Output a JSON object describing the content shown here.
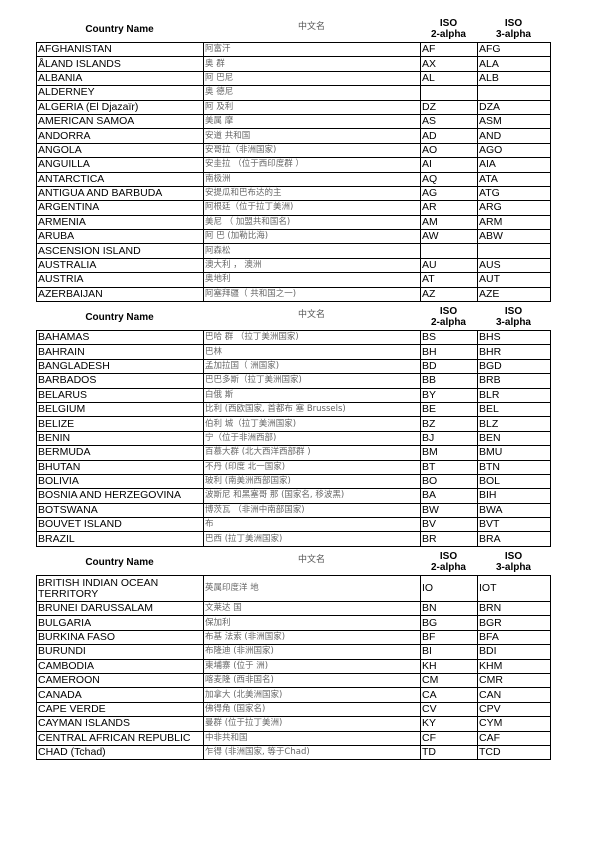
{
  "headers": {
    "name": "Country Name",
    "chinese": "中文名",
    "iso2": "ISO\n2-alpha",
    "iso3": "ISO\n3-alpha"
  },
  "sections": [
    [
      [
        "AFGHANISTAN",
        "阿富汗",
        "AF",
        "AFG"
      ],
      [
        "ÅLAND ISLANDS",
        "奥 群",
        "AX",
        "ALA"
      ],
      [
        "ALBANIA",
        "阿 巴尼",
        "AL",
        "ALB"
      ],
      [
        "ALDERNEY",
        "奥 德尼",
        "",
        ""
      ],
      [
        "ALGERIA (El Djazaïr)",
        "阿 及利",
        "DZ",
        "DZA"
      ],
      [
        "AMERICAN SAMOA",
        "美属 摩",
        "AS",
        "ASM"
      ],
      [
        "ANDORRA",
        "安道 共和国",
        "AD",
        "AND"
      ],
      [
        "ANGOLA",
        "安哥拉（非洲国家)",
        "AO",
        "AGO"
      ],
      [
        "ANGUILLA",
        "安圭拉 （位于西印度群 ）",
        "AI",
        "AIA"
      ],
      [
        "ANTARCTICA",
        "南极洲",
        "AQ",
        "ATA"
      ],
      [
        "ANTIGUA AND BARBUDA",
        "安提瓜和巴布达的主",
        "AG",
        "ATG"
      ],
      [
        "ARGENTINA",
        "阿根廷（位于拉丁美洲)",
        "AR",
        "ARG"
      ],
      [
        "ARMENIA",
        "美尼 （  加盟共和国名)",
        "AM",
        "ARM"
      ],
      [
        "ARUBA",
        "阿 巴  (加勒比海)",
        "AW",
        "ABW"
      ],
      [
        "ASCENSION ISLAND",
        "阿森松",
        "",
        ""
      ],
      [
        "AUSTRALIA",
        "澳大利 ， 澳洲",
        "AU",
        "AUS"
      ],
      [
        "AUSTRIA",
        "奥地利",
        "AT",
        "AUT"
      ],
      [
        "AZERBAIJAN",
        "阿塞拜疆（  共和国之一)",
        "AZ",
        "AZE"
      ]
    ],
    [
      [
        "BAHAMAS",
        "巴哈 群 （拉丁美洲国家)",
        "BS",
        "BHS"
      ],
      [
        "BAHRAIN",
        "巴林",
        "BH",
        "BHR"
      ],
      [
        "BANGLADESH",
        "孟加拉国（ 洲国家)",
        "BD",
        "BGD"
      ],
      [
        "BARBADOS",
        "巴巴多斯（拉丁美洲国家)",
        "BB",
        "BRB"
      ],
      [
        "BELARUS",
        "白俄 斯",
        "BY",
        "BLR"
      ],
      [
        "BELGIUM",
        "  比利  (西欧国家, 首都布 塞 Brussels)",
        "BE",
        "BEL"
      ],
      [
        "BELIZE",
        "  伯利 城（拉丁美洲国家)",
        "BZ",
        "BLZ"
      ],
      [
        "BENIN",
        " 宁（位于非洲西部)",
        "BJ",
        "BEN"
      ],
      [
        "BERMUDA",
        "  百慕大群  (北大西洋西部群 )",
        "BM",
        "BMU"
      ],
      [
        "BHUTAN",
        "不丹 (印度 北一国家)",
        "BT",
        "BTN"
      ],
      [
        "BOLIVIA",
        "玻利   (南美洲西部国家)",
        "BO",
        "BOL"
      ],
      [
        "BOSNIA AND HERZEGOVINA",
        "波斯尼 和黑塞哥 那 (国家名,  移波黑)",
        "BA",
        "BIH"
      ],
      [
        "BOTSWANA",
        "博茨瓦 （非洲中南部国家)",
        "BW",
        "BWA"
      ],
      [
        "BOUVET ISLAND",
        "布",
        "BV",
        "BVT"
      ],
      [
        "BRAZIL",
        "巴西 (拉丁美洲国家)",
        "BR",
        "BRA"
      ]
    ],
    [
      [
        "BRITISH INDIAN OCEAN TERRITORY",
        "英属印度洋 地",
        "IO",
        "IOT"
      ],
      [
        "BRUNEI DARUSSALAM",
        "文莱达       国",
        "BN",
        "BRN"
      ],
      [
        "BULGARIA",
        "保加利",
        "BG",
        "BGR"
      ],
      [
        "BURKINA FASO",
        "布基 法索 (非洲国家)",
        "BF",
        "BFA"
      ],
      [
        "BURUNDI",
        "布隆迪 (非洲国家)",
        "BI",
        "BDI"
      ],
      [
        "CAMBODIA",
        "柬埔寨 (位于 洲)",
        "KH",
        "KHM"
      ],
      [
        "CAMEROON",
        "喀麦隆 (西非国名)",
        "CM",
        "CMR"
      ],
      [
        "CANADA",
        "加拿大 (北美洲国家)",
        "CA",
        "CAN"
      ],
      [
        "CAPE VERDE",
        "佛得角 (国家名)",
        "CV",
        "CPV"
      ],
      [
        "CAYMAN ISLANDS",
        " 曼群  (位于拉丁美洲)",
        "KY",
        "CYM"
      ],
      [
        "CENTRAL AFRICAN REPUBLIC",
        "中非共和国",
        "CF",
        "CAF"
      ],
      [
        "CHAD (Tchad)",
        "乍得 (非洲国家, 等于Chad)",
        "TD",
        "TCD"
      ]
    ]
  ]
}
